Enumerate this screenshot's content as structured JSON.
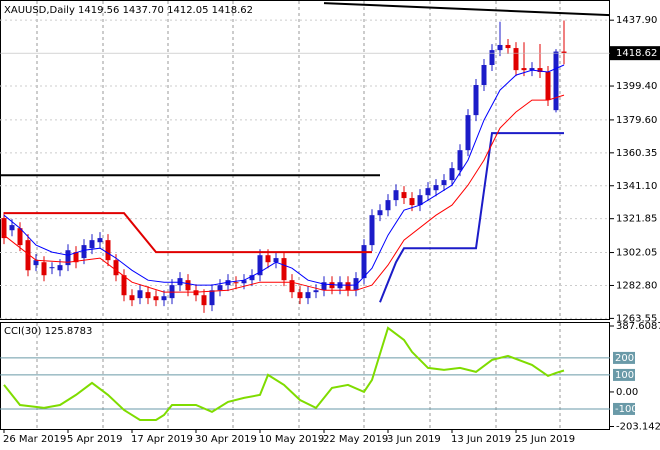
{
  "chart_data": [
    {
      "type": "candlestick",
      "title": "XAUUSD,Daily  1419.56 1437.70 1412.05 1418.62",
      "categories": [
        "26 Mar 2019",
        null,
        null,
        null,
        null,
        null,
        null,
        null,
        "5 Apr 2019",
        null,
        null,
        null,
        null,
        null,
        null,
        null,
        "17 Apr 2019",
        null,
        null,
        null,
        null,
        null,
        null,
        null,
        "30 Apr 2019",
        null,
        null,
        null,
        null,
        null,
        null,
        null,
        "10 May 2019",
        null,
        null,
        null,
        null,
        null,
        null,
        null,
        "22 May 2019",
        null,
        null,
        null,
        null,
        null,
        null,
        null,
        "3 Jun 2019",
        null,
        null,
        null,
        null,
        null,
        null,
        null,
        "13 Jun 2019",
        null,
        null,
        null,
        null,
        null,
        null,
        null,
        "25 Jun 2019",
        null,
        null,
        null,
        null,
        null,
        null
      ],
      "open": [
        1322.2,
        1315.1,
        1316.3,
        1309.3,
        1294.7,
        1296.4,
        1292.9,
        1291.7,
        1294.7,
        1302.3,
        1298.8,
        1304.6,
        1308.1,
        1309.3,
        1297.6,
        1288.8,
        1277.1,
        1275.4,
        1278.9,
        1276.5,
        1274.2,
        1275.4,
        1283.0,
        1285.9,
        1280.0,
        1277.1,
        1271.3,
        1280.0,
        1283.0,
        1284.7,
        1284.1,
        1285.9,
        1288.8,
        1300.5,
        1296.4,
        1298.8,
        1285.9,
        1278.9,
        1275.4,
        1278.9,
        1280.0,
        1284.7,
        1281.2,
        1284.7,
        1280.0,
        1287.1,
        1306.4,
        1323.9,
        1326.8,
        1332.7,
        1337.4,
        1333.9,
        1329.8,
        1335.6,
        1338.5,
        1341.5,
        1344.4,
        1350.2,
        1361.9,
        1382.4,
        1400.0,
        1411.7,
        1420.4,
        1423.4,
        1421.6,
        1409.9,
        1408.7,
        1409.9,
        1407.6,
        1385.3,
        1419.56
      ],
      "high": [
        1325.7,
        1321.6,
        1319.8,
        1312.8,
        1301.1,
        1299.9,
        1296.4,
        1298.2,
        1306.9,
        1305.8,
        1309.9,
        1312.8,
        1314.0,
        1312.8,
        1301.1,
        1292.3,
        1280.6,
        1283.5,
        1282.4,
        1280.0,
        1280.0,
        1286.5,
        1290.6,
        1289.4,
        1283.5,
        1280.6,
        1283.5,
        1286.5,
        1289.4,
        1288.2,
        1289.4,
        1292.3,
        1304.0,
        1304.0,
        1302.3,
        1302.3,
        1289.4,
        1282.4,
        1282.4,
        1283.5,
        1288.2,
        1288.2,
        1288.2,
        1288.2,
        1290.6,
        1309.9,
        1327.4,
        1330.3,
        1336.2,
        1342.0,
        1340.9,
        1337.4,
        1339.1,
        1343.2,
        1345.0,
        1347.9,
        1354.9,
        1365.4,
        1385.9,
        1403.5,
        1415.2,
        1423.9,
        1437.0,
        1426.9,
        1425.1,
        1425.0,
        1413.4,
        1424.0,
        1411.1,
        1421.0,
        1437.7
      ],
      "low": [
        1307.0,
        1311.6,
        1302.9,
        1288.2,
        1291.2,
        1285.3,
        1289.4,
        1288.2,
        1291.2,
        1292.9,
        1295.3,
        1301.1,
        1304.6,
        1294.1,
        1285.3,
        1273.6,
        1270.7,
        1271.9,
        1271.9,
        1270.7,
        1270.7,
        1271.9,
        1279.5,
        1276.5,
        1273.6,
        1266.8,
        1267.8,
        1276.5,
        1279.5,
        1280.6,
        1280.6,
        1282.4,
        1285.3,
        1292.9,
        1292.9,
        1282.4,
        1275.4,
        1271.9,
        1271.9,
        1275.4,
        1276.5,
        1277.7,
        1277.7,
        1276.5,
        1276.5,
        1283.6,
        1302.9,
        1320.4,
        1323.3,
        1329.2,
        1330.4,
        1326.3,
        1326.3,
        1332.1,
        1335.0,
        1338.0,
        1340.9,
        1346.7,
        1358.4,
        1378.9,
        1396.5,
        1408.2,
        1416.9,
        1418.1,
        1405.2,
        1405.2,
        1405.2,
        1404.1,
        1387.7,
        1384.0,
        1412.05
      ],
      "close": [
        1310.5,
        1318.1,
        1306.4,
        1291.7,
        1297.6,
        1288.8,
        1293.5,
        1294.7,
        1303.4,
        1296.4,
        1306.4,
        1309.3,
        1310.5,
        1297.6,
        1288.8,
        1277.1,
        1274.2,
        1280.0,
        1275.4,
        1274.2,
        1276.5,
        1283.0,
        1287.1,
        1280.0,
        1277.1,
        1271.3,
        1280.0,
        1283.0,
        1285.9,
        1284.1,
        1285.9,
        1288.8,
        1300.5,
        1296.4,
        1298.8,
        1285.9,
        1278.9,
        1275.4,
        1278.9,
        1280.0,
        1284.7,
        1281.2,
        1284.7,
        1280.0,
        1287.1,
        1306.4,
        1323.9,
        1326.8,
        1332.7,
        1338.5,
        1333.9,
        1329.8,
        1335.6,
        1339.7,
        1341.5,
        1344.4,
        1351.4,
        1361.9,
        1382.4,
        1400.0,
        1411.7,
        1420.4,
        1423.4,
        1421.6,
        1408.7,
        1408.7,
        1409.9,
        1407.6,
        1391.2,
        1419.56,
        1418.62
      ],
      "up_color": "#1c1cc8",
      "down_color": "#e00000",
      "series": [
        {
          "color": "#e00000",
          "width": 2,
          "x": [
            0,
            15,
            19,
            46
          ],
          "values": [
            1325.1,
            1325.1,
            1302.3,
            1302.3
          ]
        },
        {
          "color": "#1c1cc8",
          "width": 2,
          "x": [
            47,
            49,
            50,
            59,
            61,
            70
          ],
          "values": [
            1273.0,
            1296.4,
            1304.6,
            1304.6,
            1371.9,
            1371.9
          ]
        },
        {
          "color": "#0000ff",
          "width": 1,
          "x": [
            0,
            2,
            4,
            6,
            8,
            10,
            12,
            14,
            16,
            18,
            20,
            22,
            24,
            26,
            28,
            30,
            32,
            34,
            36,
            38,
            40,
            42,
            44,
            46,
            48,
            50,
            52,
            54,
            56,
            58,
            60,
            62,
            64,
            66,
            68,
            70
          ],
          "values": [
            1323.9,
            1316.3,
            1306.4,
            1302.3,
            1300.5,
            1303.4,
            1304.6,
            1298.8,
            1291.7,
            1285.9,
            1284.7,
            1284.7,
            1283.0,
            1283.0,
            1284.7,
            1285.9,
            1290.6,
            1296.4,
            1292.9,
            1285.9,
            1283.6,
            1283.0,
            1283.0,
            1292.9,
            1312.2,
            1326.8,
            1329.8,
            1335.6,
            1341.5,
            1356.1,
            1379.5,
            1397.0,
            1405.8,
            1408.7,
            1407.6,
            1411.7
          ]
        },
        {
          "color": "#ff0000",
          "width": 1,
          "x": [
            0,
            4,
            8,
            12,
            16,
            20,
            24,
            28,
            32,
            36,
            40,
            44,
            46,
            48,
            50,
            54,
            56,
            58,
            60,
            62,
            64,
            66,
            68,
            70
          ],
          "values": [
            1312.2,
            1297.6,
            1296.4,
            1298.8,
            1284.7,
            1278.9,
            1278.9,
            1280.0,
            1284.7,
            1284.7,
            1280.0,
            1280.0,
            1283.0,
            1294.7,
            1309.3,
            1323.9,
            1329.8,
            1341.5,
            1356.1,
            1374.8,
            1384.2,
            1391.2,
            1391.2,
            1394.1
          ]
        },
        {
          "color": "#000000",
          "width": 2,
          "x": [
            -0.5,
            47
          ],
          "values": [
            1347.3,
            1347.3
          ]
        },
        {
          "color": "#000000",
          "width": 2,
          "x": [
            40,
            75.75
          ],
          "values": [
            1447.9,
            1440.9
          ]
        }
      ],
      "last_price": {
        "value": 1418.62,
        "label": "1418.62"
      },
      "xlim": [
        -0.5,
        75.75
      ],
      "ylim": [
        1263.2,
        1449.7
      ],
      "grid": true,
      "yticks": [
        {
          "value": 1437.9,
          "label": "1437.90"
        },
        {
          "value": 1399.4,
          "label": "1399.40"
        },
        {
          "value": 1379.6,
          "label": "1379.60"
        },
        {
          "value": 1360.35,
          "label": "1360.35"
        },
        {
          "value": 1341.1,
          "label": "1341.10"
        },
        {
          "value": 1321.85,
          "label": "1321.85"
        },
        {
          "value": 1302.05,
          "label": "1302.05"
        },
        {
          "value": 1282.8,
          "label": "1282.80"
        },
        {
          "value": 1263.55,
          "label": "1263.55"
        }
      ]
    },
    {
      "type": "line",
      "title": "CCI(30) 125.8783",
      "color": "#7fdc00",
      "x": [
        0,
        2,
        5,
        7,
        9,
        11,
        13,
        15,
        17,
        19,
        20,
        21,
        24,
        26,
        28,
        30,
        32,
        33,
        35,
        37,
        39,
        41,
        43,
        45,
        46,
        48,
        50,
        51,
        53,
        55,
        57,
        59,
        61,
        63,
        66,
        68,
        69,
        70
      ],
      "values": [
        41.2,
        -76.5,
        -94.1,
        -76.5,
        -17.6,
        52.9,
        -17.6,
        -105.9,
        -164.7,
        -164.7,
        -135.3,
        -76.5,
        -76.5,
        -117.6,
        -58.8,
        -35.3,
        -17.6,
        100.0,
        41.2,
        -47.1,
        -94.1,
        23.5,
        41.2,
        0,
        70.6,
        376.5,
        305.9,
        235.3,
        141.2,
        129.4,
        141.2,
        117.6,
        188.2,
        211.8,
        158.8,
        94.1,
        111.8,
        125.8783
      ],
      "levels": [
        200,
        100,
        -100
      ],
      "level_color": "#6a9aa8",
      "ylim": [
        -203.1423,
        387.6087
      ],
      "yticks": [
        387.6087,
        {
          "value": 0,
          "label": "0.00"
        },
        -203.1423
      ]
    }
  ]
}
